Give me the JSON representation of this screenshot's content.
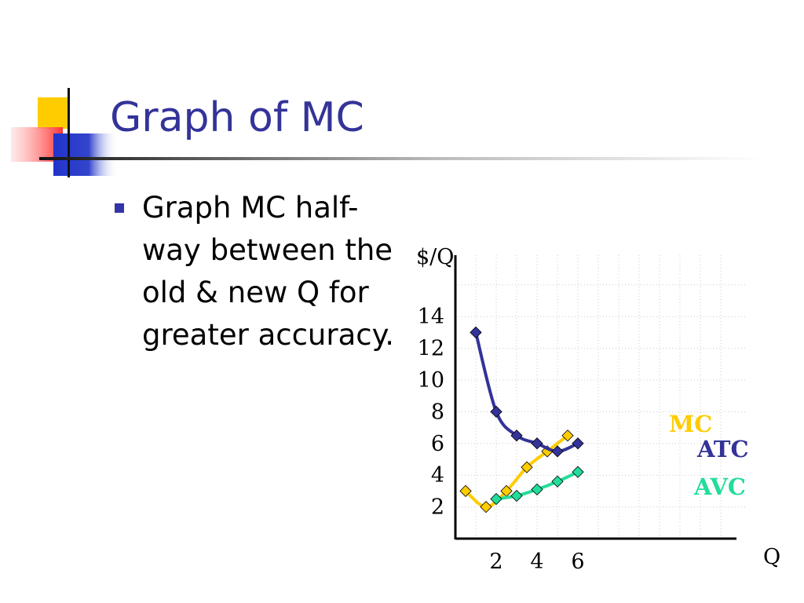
{
  "slide": {
    "title": "Graph of MC",
    "bullet": "Graph MC half-way between the old & new Q for greater accuracy."
  },
  "chart_data": {
    "type": "line",
    "xlabel": "Q",
    "ylabel": "$/Q",
    "x_ticks": [
      "2",
      "4",
      "6"
    ],
    "y_ticks": [
      "2",
      "4",
      "6",
      "8",
      "10",
      "12",
      "14"
    ],
    "xlim": [
      0,
      8
    ],
    "ylim": [
      0,
      16
    ],
    "grid": true,
    "series": [
      {
        "name": "MC",
        "color": "#ffcc00",
        "points": [
          [
            0.5,
            3.0
          ],
          [
            1.5,
            2.0
          ],
          [
            2.5,
            3.0
          ],
          [
            3.5,
            4.5
          ],
          [
            4.5,
            5.5
          ],
          [
            5.5,
            6.5
          ]
        ]
      },
      {
        "name": "ATC",
        "color": "#333399",
        "points": [
          [
            1,
            13.0
          ],
          [
            2,
            8.0
          ],
          [
            3,
            6.5
          ],
          [
            4,
            6.0
          ],
          [
            5,
            5.5
          ],
          [
            6,
            6.0
          ]
        ]
      },
      {
        "name": "AVC",
        "color": "#22dd99",
        "points": [
          [
            2,
            2.5
          ],
          [
            3,
            2.7
          ],
          [
            4,
            3.1
          ],
          [
            5,
            3.6
          ],
          [
            6,
            4.2
          ]
        ]
      }
    ]
  }
}
